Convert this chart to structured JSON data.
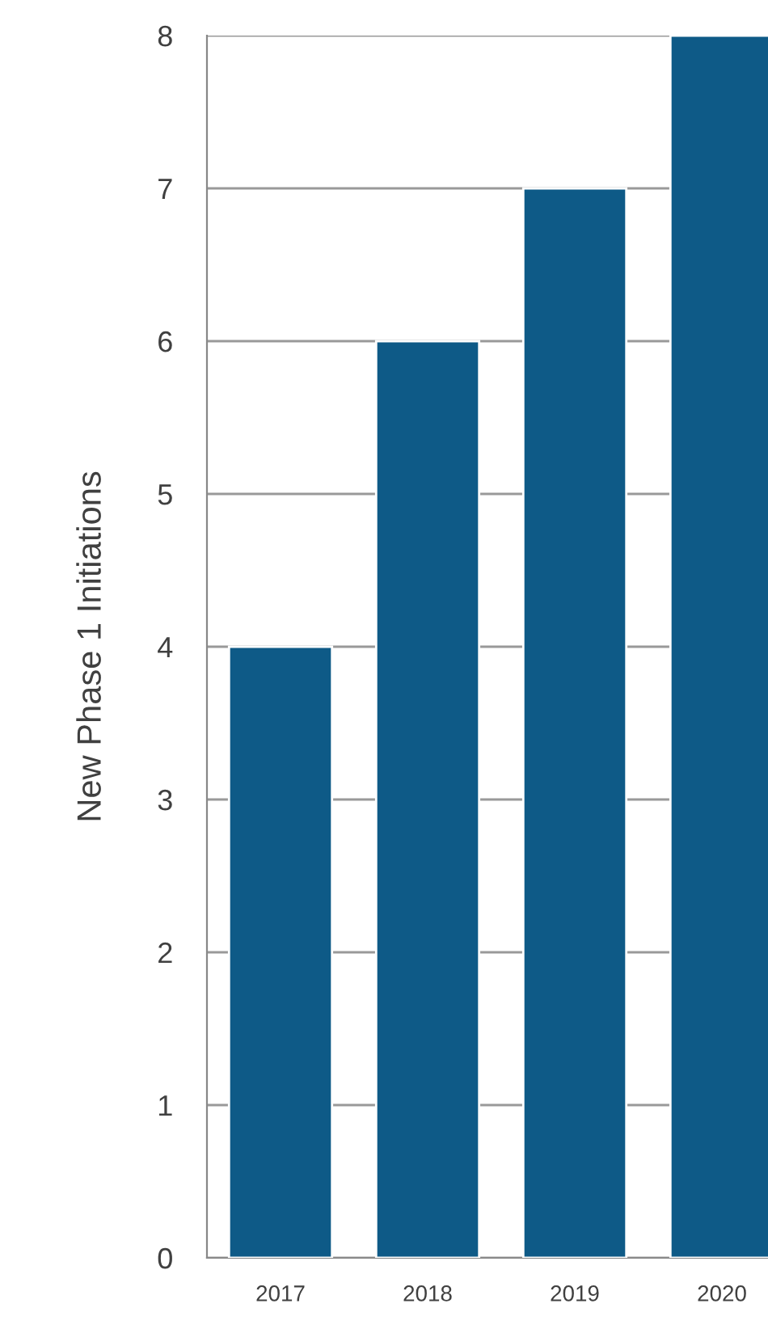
{
  "chart_data": {
    "type": "bar",
    "ylabel": "New Phase 1 Initiations",
    "categories": [
      "2017",
      "2018",
      "2019",
      "2020"
    ],
    "values": [
      4,
      6,
      7,
      8
    ],
    "color": "#0e5a87",
    "ylim": [
      0,
      8
    ],
    "yticks": [
      0,
      1,
      2,
      3,
      4,
      5,
      6,
      7,
      8
    ],
    "grid": "y",
    "legend": false
  }
}
